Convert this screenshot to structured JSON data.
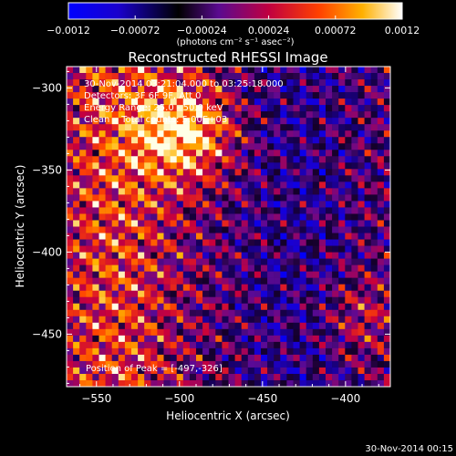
{
  "chart_data": {
    "type": "heatmap",
    "title": "Reconstructed RHESSI Image",
    "xlabel": "Heliocentric X (arcsec)",
    "ylabel": "Heliocentric Y (arcsec)",
    "xlim": [
      -568,
      -373
    ],
    "ylim": [
      -482,
      -287
    ],
    "x_ticks": [
      -550,
      -500,
      -450,
      -400
    ],
    "y_ticks": [
      -300,
      -350,
      -400,
      -450
    ],
    "colorbar": {
      "range": [
        -0.0012,
        0.0012
      ],
      "tick_labels": [
        "-0.0012",
        "-0.00072",
        "-0.00024",
        "0.00024",
        "0.00072",
        "0.0012"
      ],
      "unit_label": "(photons cm⁻² s⁻¹ asec⁻²)"
    },
    "annotations": [
      "30-Nov-2014 03:21:04.000 to 03:25:18.000",
      "Detectors: 3F 6F 9F, Att 0",
      "Energy Range: 25.0 - 50.0 keV",
      "Clean    Total counts: 5.00E+03"
    ],
    "peak_label": "Position of Peak = [-497,-326]",
    "peak": [
      -497,
      -326
    ],
    "colors": {
      "scale": [
        "#0000ff",
        "#000000",
        "#7a0ab0",
        "#ff0000",
        "#ff9900",
        "#ffff00",
        "#ffffff"
      ]
    }
  },
  "footer": {
    "timestamp": "30-Nov-2014 00:15"
  }
}
